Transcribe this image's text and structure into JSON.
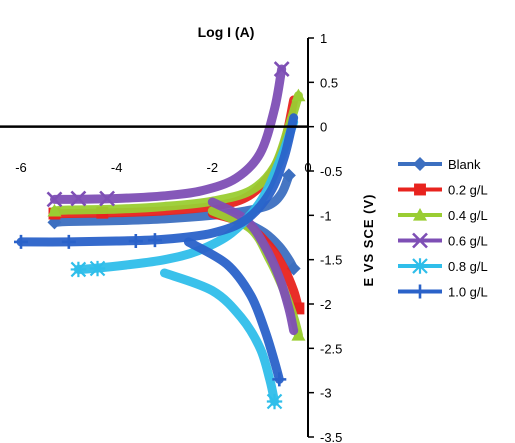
{
  "chart_data": {
    "type": "line",
    "title": "Log I (A)",
    "xlabel": "Log I (A)",
    "ylabel": "E VS SCE (V)",
    "xlim": [
      -6,
      0
    ],
    "ylim": [
      -3.5,
      1
    ],
    "x_ticks": [
      "-6",
      "-4",
      "-2",
      "0"
    ],
    "x_tick_values": [
      -6,
      -4,
      -2,
      0
    ],
    "y_ticks": [
      "1",
      "0.5",
      "0",
      "-0.5",
      "-1",
      "-1.5",
      "-2",
      "-2.5",
      "-3",
      "-3.5"
    ],
    "y_tick_values": [
      1,
      0.5,
      0,
      -0.5,
      -1,
      -1.5,
      -2,
      -2.5,
      -3,
      -3.5
    ],
    "grid": false,
    "legend_position": "right",
    "series": [
      {
        "name": "Blank",
        "color": "#3C6FC0",
        "marker": "diamond",
        "anodic": [
          [
            -0.4,
            -0.55
          ],
          [
            -0.55,
            -0.75
          ],
          [
            -0.8,
            -0.88
          ],
          [
            -1.3,
            -0.95
          ],
          [
            -2.0,
            -1.0
          ],
          [
            -3.0,
            -1.04
          ],
          [
            -4.0,
            -1.06
          ],
          [
            -5.0,
            -1.07
          ],
          [
            -5.3,
            -1.08
          ]
        ],
        "cathodic": [
          [
            -1.3,
            -1.08
          ],
          [
            -0.9,
            -1.2
          ],
          [
            -0.6,
            -1.35
          ],
          [
            -0.4,
            -1.5
          ],
          [
            -0.3,
            -1.6
          ]
        ],
        "markers": [
          [
            -5.3,
            -1.08
          ],
          [
            -0.4,
            -0.55
          ],
          [
            -0.3,
            -1.6
          ]
        ]
      },
      {
        "name": "0.2 g/L",
        "color": "#E8231E",
        "marker": "square",
        "anodic": [
          [
            -0.3,
            0.3
          ],
          [
            -0.5,
            -0.2
          ],
          [
            -0.8,
            -0.55
          ],
          [
            -1.3,
            -0.8
          ],
          [
            -2.0,
            -0.9
          ],
          [
            -3.0,
            -0.95
          ],
          [
            -4.0,
            -0.97
          ],
          [
            -5.0,
            -0.98
          ],
          [
            -5.3,
            -0.98
          ]
        ],
        "cathodic": [
          [
            -2.0,
            -0.98
          ],
          [
            -1.3,
            -1.1
          ],
          [
            -0.8,
            -1.35
          ],
          [
            -0.5,
            -1.6
          ],
          [
            -0.3,
            -1.85
          ],
          [
            -0.2,
            -2.05
          ]
        ],
        "markers": [
          [
            -5.3,
            -0.98
          ],
          [
            -4.3,
            -0.97
          ],
          [
            -0.2,
            -2.05
          ]
        ]
      },
      {
        "name": "0.4 g/L",
        "color": "#9ACD32",
        "marker": "triangle",
        "anodic": [
          [
            -0.2,
            0.35
          ],
          [
            -0.4,
            0.0
          ],
          [
            -0.7,
            -0.45
          ],
          [
            -1.2,
            -0.72
          ],
          [
            -2.0,
            -0.84
          ],
          [
            -3.0,
            -0.9
          ],
          [
            -4.0,
            -0.93
          ],
          [
            -5.0,
            -0.94
          ],
          [
            -5.3,
            -0.95
          ]
        ],
        "cathodic": [
          [
            -2.0,
            -0.95
          ],
          [
            -1.2,
            -1.15
          ],
          [
            -0.8,
            -1.5
          ],
          [
            -0.5,
            -1.85
          ],
          [
            -0.3,
            -2.15
          ],
          [
            -0.2,
            -2.35
          ]
        ],
        "markers": [
          [
            -5.3,
            -0.95
          ],
          [
            -0.2,
            0.35
          ],
          [
            -0.2,
            -2.35
          ]
        ]
      },
      {
        "name": "0.6 g/L",
        "color": "#7E4FB5",
        "marker": "x",
        "anodic": [
          [
            -0.55,
            0.65
          ],
          [
            -0.7,
            0.2
          ],
          [
            -1.0,
            -0.3
          ],
          [
            -1.5,
            -0.58
          ],
          [
            -2.2,
            -0.72
          ],
          [
            -3.0,
            -0.78
          ],
          [
            -4.0,
            -0.81
          ],
          [
            -5.0,
            -0.82
          ],
          [
            -5.3,
            -0.82
          ]
        ],
        "cathodic": [
          [
            -2.0,
            -0.85
          ],
          [
            -1.3,
            -1.05
          ],
          [
            -0.9,
            -1.35
          ],
          [
            -0.6,
            -1.7
          ],
          [
            -0.4,
            -2.05
          ],
          [
            -0.3,
            -2.3
          ]
        ],
        "markers": [
          [
            -5.3,
            -0.82
          ],
          [
            -4.8,
            -0.81
          ],
          [
            -4.2,
            -0.81
          ],
          [
            -0.55,
            0.65
          ]
        ]
      },
      {
        "name": "0.8 g/L",
        "color": "#2FBEEA",
        "marker": "asterisk",
        "anodic": [
          [
            -0.3,
            0.05
          ],
          [
            -0.6,
            -0.4
          ],
          [
            -1.0,
            -0.85
          ],
          [
            -1.6,
            -1.2
          ],
          [
            -2.3,
            -1.4
          ],
          [
            -3.0,
            -1.5
          ],
          [
            -3.8,
            -1.56
          ],
          [
            -4.5,
            -1.6
          ],
          [
            -4.8,
            -1.61
          ]
        ],
        "cathodic": [
          [
            -3.0,
            -1.65
          ],
          [
            -2.0,
            -1.85
          ],
          [
            -1.4,
            -2.15
          ],
          [
            -1.0,
            -2.5
          ],
          [
            -0.8,
            -2.85
          ],
          [
            -0.7,
            -3.1
          ]
        ],
        "markers": [
          [
            -4.8,
            -1.61
          ],
          [
            -4.4,
            -1.6
          ],
          [
            -0.7,
            -3.1
          ]
        ]
      },
      {
        "name": "1.0 g/L",
        "color": "#2A62C9",
        "marker": "plus",
        "anodic": [
          [
            -0.3,
            0.1
          ],
          [
            -0.5,
            -0.35
          ],
          [
            -0.8,
            -0.75
          ],
          [
            -1.3,
            -1.05
          ],
          [
            -2.0,
            -1.2
          ],
          [
            -3.0,
            -1.27
          ],
          [
            -4.0,
            -1.29
          ],
          [
            -5.0,
            -1.3
          ],
          [
            -6.0,
            -1.3
          ]
        ],
        "cathodic": [
          [
            -2.5,
            -1.3
          ],
          [
            -1.7,
            -1.55
          ],
          [
            -1.2,
            -1.9
          ],
          [
            -0.9,
            -2.3
          ],
          [
            -0.7,
            -2.65
          ],
          [
            -0.6,
            -2.85
          ]
        ],
        "markers": [
          [
            -6.0,
            -1.3
          ],
          [
            -5.0,
            -1.3
          ],
          [
            -3.6,
            -1.29
          ],
          [
            -3.2,
            -1.28
          ],
          [
            -0.6,
            -2.85
          ]
        ]
      }
    ]
  }
}
